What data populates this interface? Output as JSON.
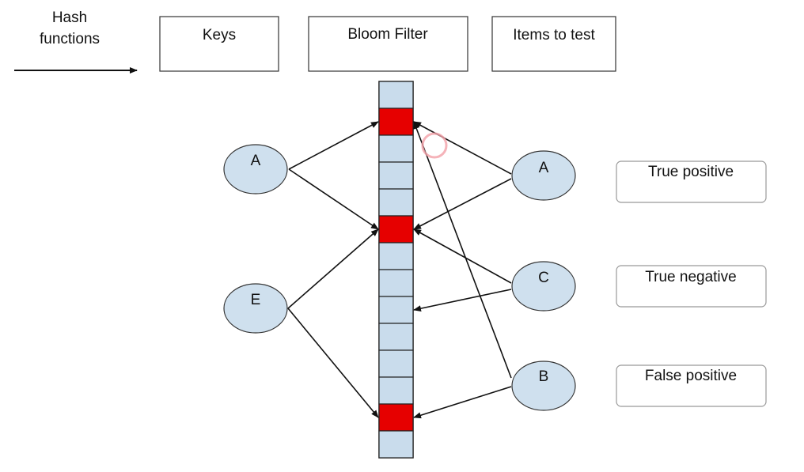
{
  "legend": {
    "hash_functions_line1": "Hash",
    "hash_functions_line2": "functions"
  },
  "headers": {
    "keys": "Keys",
    "bloom_filter": "Bloom Filter",
    "items_to_test": "Items to test"
  },
  "keys": [
    {
      "label": "A",
      "maps_to_cells": [
        1,
        5
      ]
    },
    {
      "label": "E",
      "maps_to_cells": [
        5,
        12
      ]
    }
  ],
  "items_to_test": [
    {
      "label": "A",
      "maps_to_cells": [
        1,
        5
      ],
      "result": "True positive"
    },
    {
      "label": "C",
      "maps_to_cells": [
        5,
        8
      ],
      "result": "True negative"
    },
    {
      "label": "B",
      "maps_to_cells": [
        12,
        1
      ],
      "result": "False positive"
    }
  ],
  "bloom_filter": {
    "cell_count": 14,
    "set_bits": [
      1,
      5,
      12
    ],
    "set_color": "#e60000",
    "empty_color": "#c9dcec"
  },
  "colors": {
    "node_fill": "#cfe0ee",
    "line": "#111111",
    "cursor": "#f2a0a8"
  }
}
